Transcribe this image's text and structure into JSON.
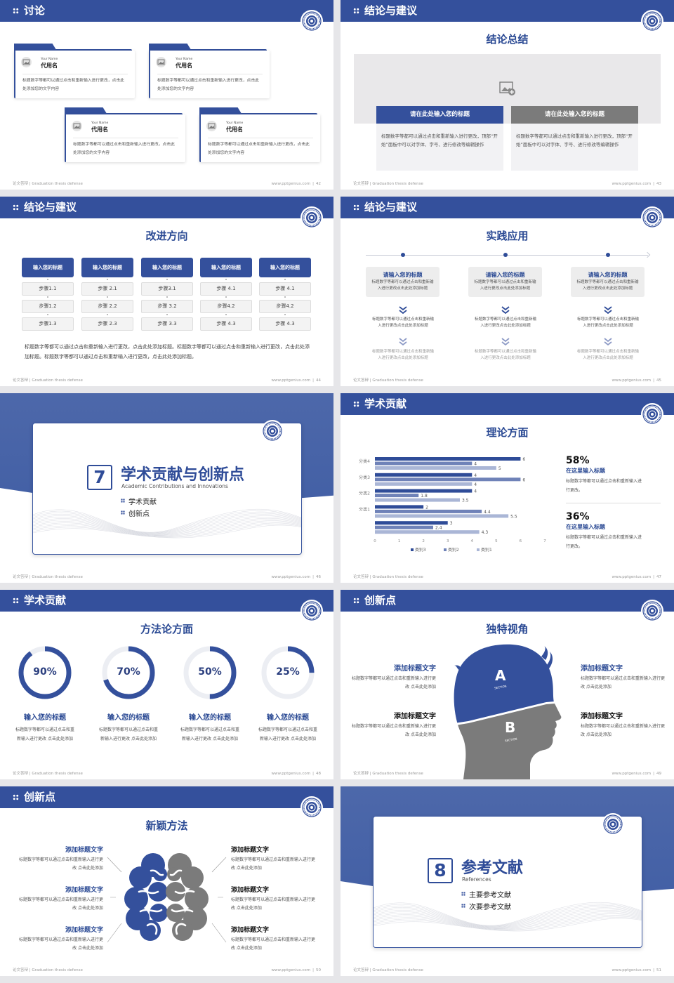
{
  "footer": {
    "left": "论文答辩 | Graduation thesis defense",
    "site": "www.pptgenius.com",
    "separator": "|"
  },
  "colors": {
    "primary": "#34509c",
    "gray": "#7b7b7b",
    "light_panel": "#f2f2f4"
  },
  "slides": [
    {
      "page": "42",
      "header": "讨论",
      "cards": [
        {
          "en": "Your Name",
          "name": "代用名",
          "text": "标题数字等都可以通过点击和重新输入进行更改，点击此处添加您的文字内容"
        },
        {
          "en": "Your Name",
          "name": "代用名",
          "text": "标题数字等都可以通过点击和重新输入进行更改，点击此处添加您的文字内容"
        },
        {
          "en": "Your Name",
          "name": "代用名",
          "text": "标题数字等都可以通过点击和重新输入进行更改，点击此处添加您的文字内容"
        },
        {
          "en": "Your Name",
          "name": "代用名",
          "text": "标题数字等都可以通过点击和重新输入进行更改，点击此处添加您的文字内容"
        }
      ]
    },
    {
      "page": "43",
      "header": "结论与建议",
      "title": "结论总结",
      "image_icon": "image-plus-icon",
      "panels": [
        {
          "title": "请在此处输入您的标题",
          "text": "标题数字等都可以通过点击和重新输入进行更改，顶部“开始”面板中可以对字体、字号、进行修改等编辑操作"
        },
        {
          "title": "请在此处输入您的标题",
          "text": "标题数字等都可以通过点击和重新输入进行更改，顶部“开始”面板中可以对字体、字号、进行修改等编辑操作"
        }
      ]
    },
    {
      "page": "44",
      "header": "结论与建议",
      "title": "改进方向",
      "columns": [
        {
          "title": "输入您的标题",
          "steps": [
            "步骤1.1",
            "步骤1.2",
            "步骤1.3"
          ]
        },
        {
          "title": "输入您的标题",
          "steps": [
            "步骤 2.1",
            "步骤 2.2",
            "步骤 2.3"
          ]
        },
        {
          "title": "输入您的标题",
          "steps": [
            "步骤3.1",
            "步骤 3.2",
            "步骤 3.3"
          ]
        },
        {
          "title": "输入您的标题",
          "steps": [
            "步骤 4.1",
            "步骤4.2",
            "步骤 4.3"
          ]
        },
        {
          "title": "输入您的标题",
          "steps": [
            "步骤 4.1",
            "步骤4.2",
            "步骤 4.3"
          ]
        }
      ],
      "paragraph": "标题数字等都可以通过点击和重新输入进行更改，点击此处添加标题。标题数字等都可以通过点击和重新输入进行更改，点击此处添加标题。标题数字等都可以通过点击和重新输入进行更改，点击此处添加标题。"
    },
    {
      "page": "45",
      "header": "结论与建议",
      "title": "实践应用",
      "items": [
        {
          "title": "请输入您的标题",
          "text": "标题数字等都可以通过点击和重新输入进行更改点击此处添加标题",
          "text2": "标题数字等都可以通过点击和重新输入进行更改点击此处添加标题",
          "text3": "标题数字等都可以通过点击和重新输入进行更改点击此处添加标题"
        },
        {
          "title": "请输入您的标题",
          "text": "标题数字等都可以通过点击和重新输入进行更改点击此处添加标题",
          "text2": "标题数字等都可以通过点击和重新输入进行更改点击此处添加标题",
          "text3": "标题数字等都可以通过点击和重新输入进行更改点击此处添加标题"
        },
        {
          "title": "请输入您的标题",
          "text": "标题数字等都可以通过点击和重新输入进行更改点击此处添加标题",
          "text2": "标题数字等都可以通过点击和重新输入进行更改点击此处添加标题",
          "text3": "标题数字等都可以通过点击和重新输入进行更改点击此处添加标题"
        }
      ]
    },
    {
      "page": "46",
      "number": "7",
      "title": "学术贡献与创新点",
      "subtitle": "Academic Contributions and Innovations",
      "items": [
        "学术贡献",
        "创新点"
      ]
    },
    {
      "page": "47",
      "header": "学术贡献",
      "title": "理论方面",
      "stats": [
        {
          "value": "58%",
          "title": "在这里输入标题",
          "text": "标题数字等都可以通过点击和重新输入进行更改。"
        },
        {
          "value": "36%",
          "title": "在这里输入标题",
          "text": "标题数字等都可以通过点击和重新输入进行更改。"
        }
      ]
    },
    {
      "page": "48",
      "header": "学术贡献",
      "title": "方法论方面",
      "rings": [
        {
          "value": 90,
          "label": "90%",
          "title": "输入您的标题",
          "text": "标题数字等都可以通过点击和重新输入进行更改 点击此处添加"
        },
        {
          "value": 70,
          "label": "70%",
          "title": "输入您的标题",
          "text": "标题数字等都可以通过点击和重新输入进行更改 点击此处添加"
        },
        {
          "value": 50,
          "label": "50%",
          "title": "输入您的标题",
          "text": "标题数字等都可以通过点击和重新输入进行更改 点击此处添加"
        },
        {
          "value": 25,
          "label": "25%",
          "title": "输入您的标题",
          "text": "标题数字等都可以通过点击和重新输入进行更改 点击此处添加"
        }
      ]
    },
    {
      "page": "49",
      "header": "创新点",
      "title": "独特视角",
      "head": {
        "a": "A",
        "b": "B",
        "section": "SECTION"
      },
      "blocks": [
        {
          "title": "添加标题文字",
          "text": "标题数字等都可以通过点击和重新输入进行更改 点击此处添加"
        },
        {
          "title": "添加标题文字",
          "text": "标题数字等都可以通过点击和重新输入进行更改 点击此处添加"
        },
        {
          "title": "添加标题文字",
          "text": "标题数字等都可以通过点击和重新输入进行更改 点击此处添加"
        },
        {
          "title": "添加标题文字",
          "text": "标题数字等都可以通过点击和重新输入进行更改 点击此处添加"
        }
      ]
    },
    {
      "page": "50",
      "header": "创新点",
      "title": "新颖方法",
      "blocks": [
        {
          "title": "添加标题文字",
          "text": "标题数字等都可以通过点击和重新输入进行更改 点击此处添加"
        },
        {
          "title": "添加标题文字",
          "text": "标题数字等都可以通过点击和重新输入进行更改 点击此处添加"
        },
        {
          "title": "添加标题文字",
          "text": "标题数字等都可以通过点击和重新输入进行更改 点击此处添加"
        },
        {
          "title": "添加标题文字",
          "text": "标题数字等都可以通过点击和重新输入进行更改 点击此处添加"
        },
        {
          "title": "添加标题文字",
          "text": "标题数字等都可以通过点击和重新输入进行更改 点击此处添加"
        },
        {
          "title": "添加标题文字",
          "text": "标题数字等都可以通过点击和重新输入进行更改 点击此处添加"
        }
      ]
    },
    {
      "page": "51",
      "number": "8",
      "title": "参考文献",
      "subtitle": "References",
      "items": [
        "主要参考文献",
        "次要参考文献"
      ]
    }
  ],
  "chart_data": {
    "type": "bar",
    "orientation": "horizontal",
    "categories": [
      "分类4",
      "分类3",
      "分类2",
      "分类1",
      ""
    ],
    "series": [
      {
        "name": "类别3",
        "color": "#2f4c98",
        "values": [
          6,
          4,
          4,
          2,
          3
        ]
      },
      {
        "name": "类别2",
        "color": "#6f82b8",
        "values": [
          4,
          6,
          1.8,
          4.4,
          2.4
        ]
      },
      {
        "name": "类别1",
        "color": "#aab6d6",
        "values": [
          5,
          4,
          3.5,
          5.5,
          4.3
        ]
      }
    ],
    "xlim": [
      0,
      7
    ],
    "xticks": [
      "0",
      "1",
      "2",
      "3",
      "4",
      "5",
      "6",
      "7"
    ],
    "data_labels": true,
    "grid": false,
    "legend": "bottom"
  }
}
